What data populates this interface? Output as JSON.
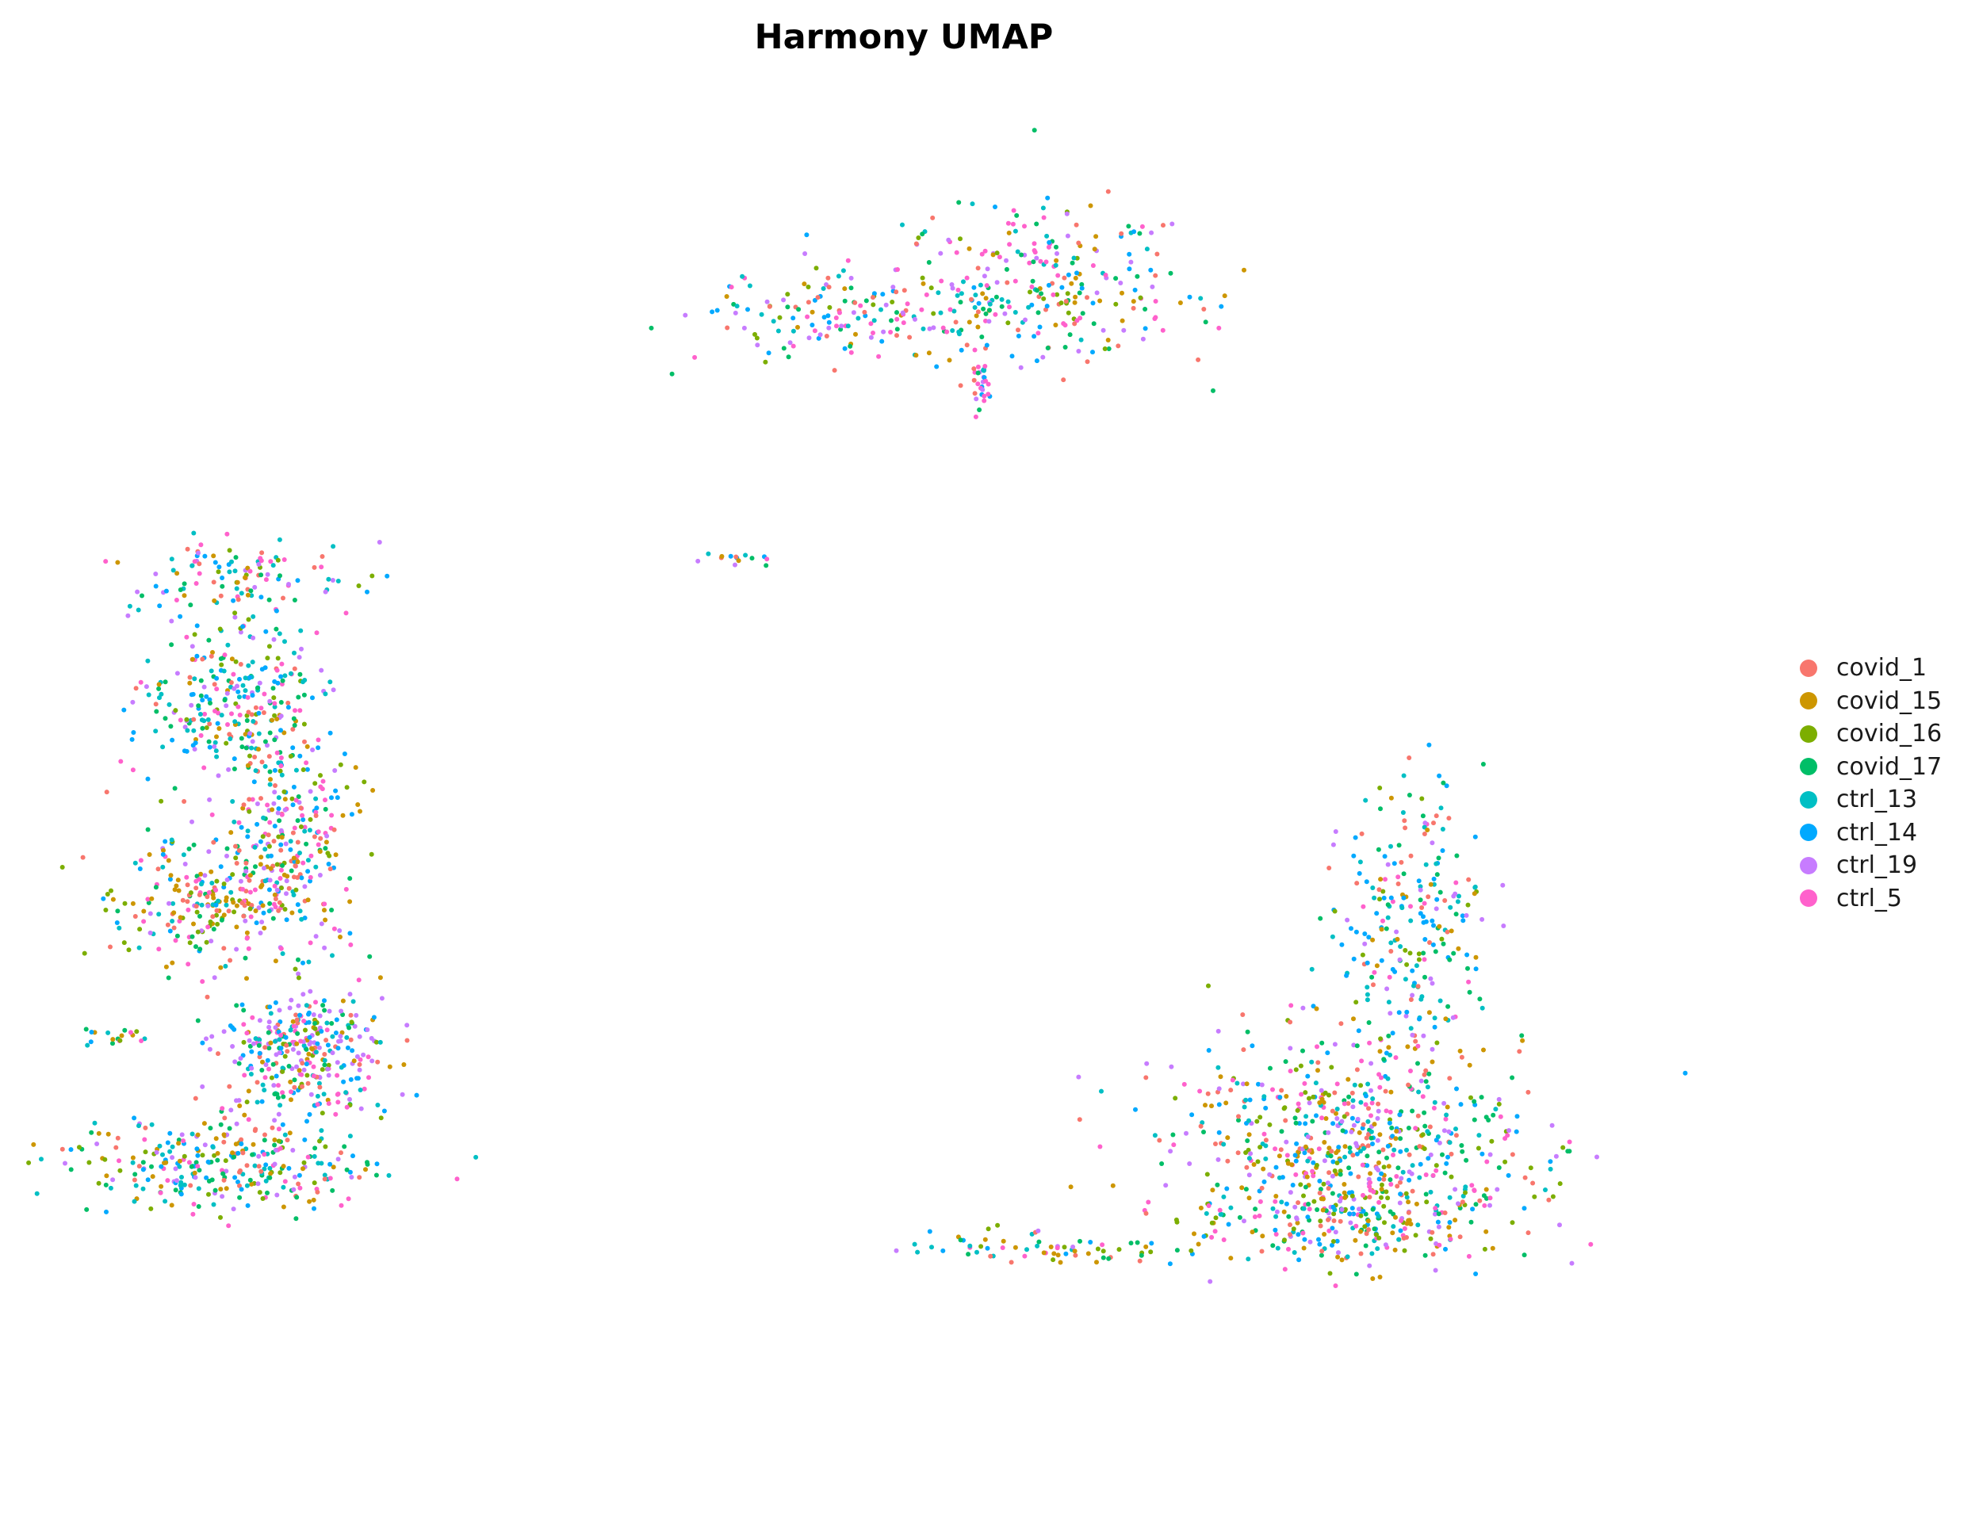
{
  "chart_data": {
    "type": "scatter",
    "title": "Harmony UMAP",
    "xlabel": "",
    "ylabel": "",
    "axes_visible": false,
    "grid": false,
    "legend_position": "right",
    "xlim": [
      -10,
      10
    ],
    "ylim": [
      -10,
      10
    ],
    "point_size": "small",
    "series": [
      {
        "name": "covid_1",
        "color": "#F8766D"
      },
      {
        "name": "covid_15",
        "color": "#CD9600"
      },
      {
        "name": "covid_16",
        "color": "#7CAE00"
      },
      {
        "name": "covid_17",
        "color": "#00BE67"
      },
      {
        "name": "ctrl_13",
        "color": "#00BFC4"
      },
      {
        "name": "ctrl_14",
        "color": "#00A9FF"
      },
      {
        "name": "ctrl_19",
        "color": "#C77CFF"
      },
      {
        "name": "ctrl_5",
        "color": "#FF61CC"
      }
    ],
    "clusters": [
      {
        "center": [
          1.8,
          7.2
        ],
        "sx": 0.9,
        "sy": 0.6,
        "n": 260,
        "weights": [
          1.2,
          1,
          0.8,
          1.4,
          1,
          1,
          1,
          1.3
        ]
      },
      {
        "center": [
          -0.6,
          6.8
        ],
        "sx": 1.0,
        "sy": 0.35,
        "n": 160,
        "weights": [
          1,
          0.8,
          0.6,
          1,
          1,
          1,
          1.3,
          1.4
        ]
      },
      {
        "center": [
          0.95,
          5.7
        ],
        "sx": 0.05,
        "sy": 0.25,
        "n": 25,
        "weights": [
          0.5,
          0.3,
          0.3,
          0.5,
          0.5,
          0.8,
          1.5,
          1.5
        ]
      },
      {
        "center": [
          -2.1,
          3.2
        ],
        "sx": 0.2,
        "sy": 0.05,
        "n": 14,
        "weights": [
          0.5,
          0.3,
          0.5,
          1,
          1,
          1.5,
          0.5,
          0.5
        ]
      },
      {
        "center": [
          -8.3,
          3.0
        ],
        "sx": 0.75,
        "sy": 0.3,
        "n": 110,
        "weights": [
          1,
          0.8,
          0.7,
          1,
          1.4,
          1.2,
          1,
          1
        ]
      },
      {
        "center": [
          -8.3,
          1.0
        ],
        "sx": 0.55,
        "sy": 0.7,
        "n": 300,
        "weights": [
          0.8,
          0.6,
          0.5,
          0.9,
          1.5,
          1.5,
          1,
          0.8
        ]
      },
      {
        "center": [
          -7.6,
          -1.0
        ],
        "sx": 0.45,
        "sy": 0.7,
        "n": 240,
        "weights": [
          1.2,
          1,
          0.8,
          1,
          1.2,
          1.3,
          1,
          1.2
        ]
      },
      {
        "center": [
          -8.6,
          -1.9
        ],
        "sx": 0.6,
        "sy": 0.45,
        "n": 230,
        "weights": [
          1.2,
          1.3,
          0.9,
          1.1,
          0.8,
          0.8,
          1,
          1.2
        ]
      },
      {
        "center": [
          -7.4,
          -4.0
        ],
        "sx": 0.5,
        "sy": 0.5,
        "n": 340,
        "weights": [
          0.9,
          0.6,
          0.5,
          0.8,
          1,
          1.3,
          2.2,
          1.3
        ]
      },
      {
        "center": [
          -8.5,
          -5.7
        ],
        "sx": 0.9,
        "sy": 0.35,
        "n": 300,
        "weights": [
          1,
          1.2,
          0.8,
          1,
          1.3,
          1.2,
          0.8,
          0.8
        ]
      },
      {
        "center": [
          -9.7,
          -3.8
        ],
        "sx": 0.25,
        "sy": 0.08,
        "n": 18,
        "weights": [
          0.5,
          0.5,
          0.5,
          1,
          1.5,
          1,
          0.5,
          0.5
        ]
      },
      {
        "center": [
          5.5,
          -5.3
        ],
        "sx": 1.1,
        "sy": 0.75,
        "n": 600,
        "weights": [
          1,
          1,
          0.8,
          1.2,
          1.2,
          1.2,
          1,
          1
        ]
      },
      {
        "center": [
          5.5,
          -6.5
        ],
        "sx": 1.0,
        "sy": 0.35,
        "n": 220,
        "weights": [
          1,
          1.6,
          1.1,
          0.9,
          0.8,
          0.9,
          1,
          1
        ]
      },
      {
        "center": [
          6.3,
          -2.2
        ],
        "sx": 0.45,
        "sy": 1.0,
        "n": 240,
        "weights": [
          0.9,
          0.6,
          0.5,
          1,
          1.3,
          1.6,
          0.9,
          1
        ]
      },
      {
        "center": [
          1.8,
          -6.9
        ],
        "sx": 1.0,
        "sy": 0.12,
        "n": 70,
        "weights": [
          1,
          1.5,
          1,
          1,
          0.8,
          1,
          0.5,
          0.5
        ]
      }
    ]
  },
  "legend": {
    "items": [
      {
        "label": "covid_1",
        "color": "#F8766D"
      },
      {
        "label": "covid_15",
        "color": "#CD9600"
      },
      {
        "label": "covid_16",
        "color": "#7CAE00"
      },
      {
        "label": "covid_17",
        "color": "#00BE67"
      },
      {
        "label": "ctrl_13",
        "color": "#00BFC4"
      },
      {
        "label": "ctrl_14",
        "color": "#00A9FF"
      },
      {
        "label": "ctrl_19",
        "color": "#C77CFF"
      },
      {
        "label": "ctrl_5",
        "color": "#FF61CC"
      }
    ]
  }
}
